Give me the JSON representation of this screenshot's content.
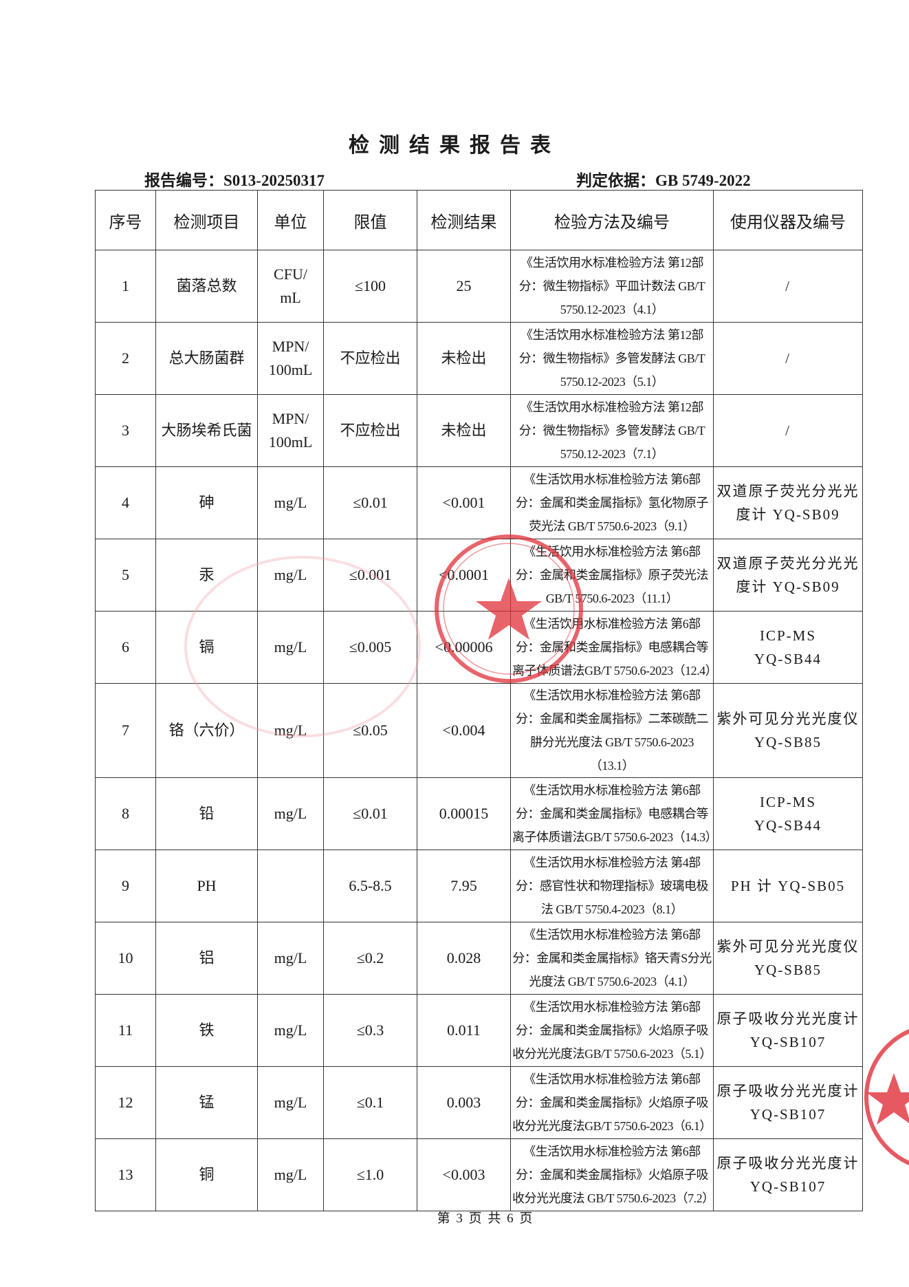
{
  "title": "检测结果报告表",
  "report_no": "报告编号：S013-20250317",
  "basis": "判定依据：GB 5749-2022",
  "headers": [
    "序号",
    "检测项目",
    "单位",
    "限值",
    "检测结果",
    "检验方法及编号",
    "使用仪器及编号"
  ],
  "rows": [
    {
      "no": "1",
      "item": "菌落总数",
      "unit": "CFU/\nmL",
      "limit": "≤100",
      "result": "25",
      "method": "《生活饮用水标准检验方法 第12部分：微生物指标》平皿计数法 GB/T 5750.12-2023（4.1）",
      "instrument": "/"
    },
    {
      "no": "2",
      "item": "总大肠菌群",
      "unit": "MPN/\n100mL",
      "limit": "不应检出",
      "result": "未检出",
      "method": "《生活饮用水标准检验方法 第12部分：微生物指标》多管发酵法 GB/T 5750.12-2023（5.1）",
      "instrument": "/"
    },
    {
      "no": "3",
      "item": "大肠埃希氏菌",
      "unit": "MPN/\n100mL",
      "limit": "不应检出",
      "result": "未检出",
      "method": "《生活饮用水标准检验方法 第12部分：微生物指标》多管发酵法 GB/T 5750.12-2023（7.1）",
      "instrument": "/"
    },
    {
      "no": "4",
      "item": "砷",
      "unit": "mg/L",
      "limit": "≤0.01",
      "result": "<0.001",
      "method": "《生活饮用水标准检验方法 第6部分：金属和类金属指标》氢化物原子荧光法 GB/T 5750.6-2023（9.1）",
      "instrument": "双道原子荧光分光光度计 YQ-SB09"
    },
    {
      "no": "5",
      "item": "汞",
      "unit": "mg/L",
      "limit": "≤0.001",
      "result": "<0.0001",
      "method": "《生活饮用水标准检验方法 第6部分：金属和类金属指标》原子荧光法 GB/T 5750.6-2023（11.1）",
      "instrument": "双道原子荧光分光光度计 YQ-SB09"
    },
    {
      "no": "6",
      "item": "镉",
      "unit": "mg/L",
      "limit": "≤0.005",
      "result": "<0.00006",
      "method": "《生活饮用水标准检验方法 第6部分：金属和类金属指标》电感耦合等离子体质谱法GB/T 5750.6-2023（12.4）",
      "instrument": "ICP-MS\nYQ-SB44"
    },
    {
      "no": "7",
      "item": "铬（六价）",
      "unit": "mg/L",
      "limit": "≤0.05",
      "result": "<0.004",
      "method": "《生活饮用水标准检验方法 第6部分：金属和类金属指标》二苯碳酰二肼分光光度法 GB/T 5750.6-2023（13.1）",
      "instrument": "紫外可见分光光度仪\nYQ-SB85"
    },
    {
      "no": "8",
      "item": "铅",
      "unit": "mg/L",
      "limit": "≤0.01",
      "result": "0.00015",
      "method": "《生活饮用水标准检验方法 第6部分：金属和类金属指标》电感耦合等离子体质谱法GB/T 5750.6-2023（14.3）",
      "instrument": "ICP-MS\nYQ-SB44"
    },
    {
      "no": "9",
      "item": "PH",
      "unit": "",
      "limit": "6.5-8.5",
      "result": "7.95",
      "method": "《生活饮用水标准检验方法 第4部分：感官性状和物理指标》玻璃电极法 GB/T 5750.4-2023（8.1）",
      "instrument": "PH 计 YQ-SB05"
    },
    {
      "no": "10",
      "item": "铝",
      "unit": "mg/L",
      "limit": "≤0.2",
      "result": "0.028",
      "method": "《生活饮用水标准检验方法 第6部分：金属和类金属指标》铬天青S分光光度法 GB/T 5750.6-2023（4.1）",
      "instrument": "紫外可见分光光度仪\nYQ-SB85"
    },
    {
      "no": "11",
      "item": "铁",
      "unit": "mg/L",
      "limit": "≤0.3",
      "result": "0.011",
      "method": "《生活饮用水标准检验方法 第6部分：金属和类金属指标》火焰原子吸收分光光度法GB/T 5750.6-2023（5.1）",
      "instrument": "原子吸收分光光度计 YQ-SB107"
    },
    {
      "no": "12",
      "item": "锰",
      "unit": "mg/L",
      "limit": "≤0.1",
      "result": "0.003",
      "method": "《生活饮用水标准检验方法 第6部分：金属和类金属指标》火焰原子吸收分光光度法GB/T 5750.6-2023（6.1）",
      "instrument": "原子吸收分光光度计 YQ-SB107"
    },
    {
      "no": "13",
      "item": "铜",
      "unit": "mg/L",
      "limit": "≤1.0",
      "result": "<0.003",
      "method": "《生活饮用水标准检验方法 第6部分：金属和类金属指标》火焰原子吸收分光光度法 GB/T 5750.6-2023（7.2）",
      "instrument": "原子吸收分光光度计 YQ-SB107"
    }
  ],
  "footer": "第 3 页 共 6 页",
  "colors": {
    "stamp": "#e0303a",
    "ink": "#1a1a1a"
  }
}
